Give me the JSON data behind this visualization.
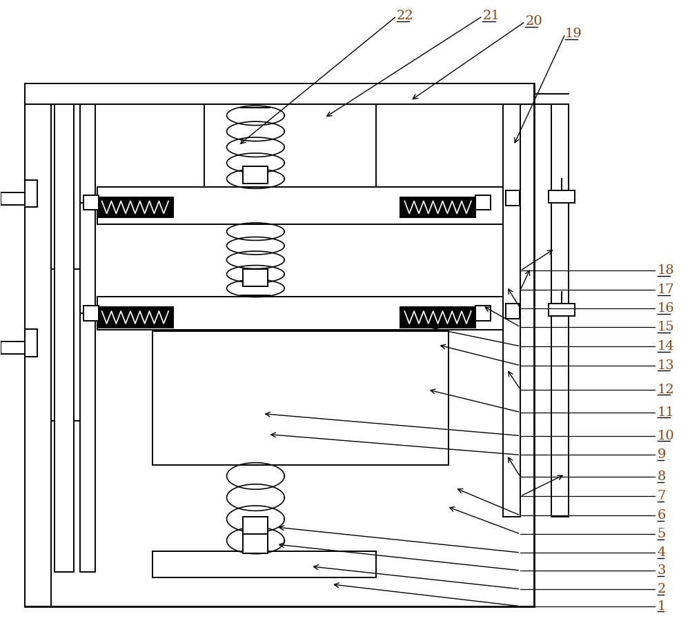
{
  "bg_color": "#ffffff",
  "line_color": "#000000",
  "label_color": "#000000",
  "fig_width": 10.0,
  "fig_height": 9.32,
  "lw": 1.4
}
